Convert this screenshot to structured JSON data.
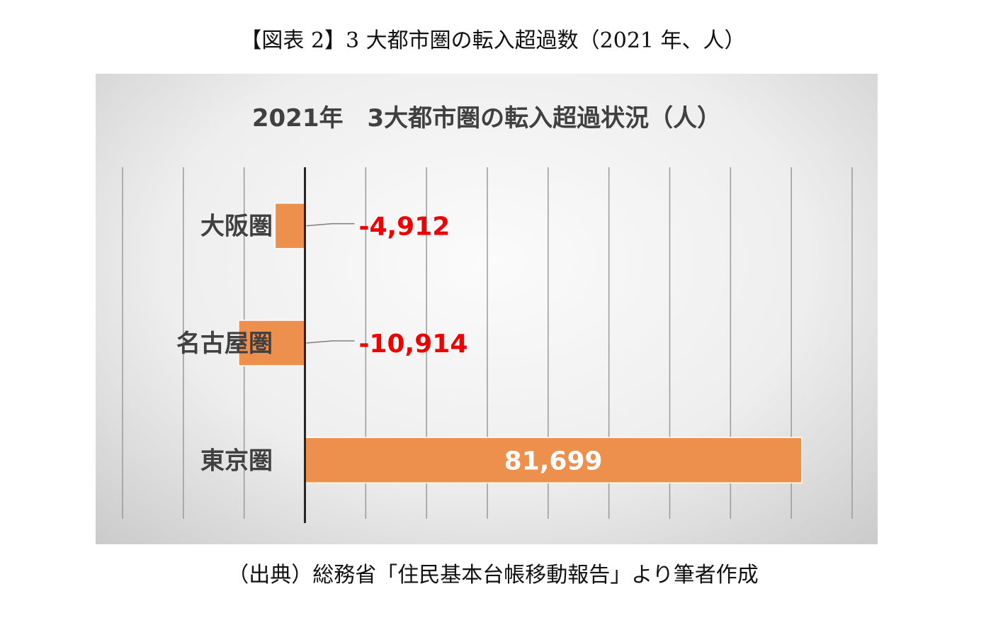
{
  "figure_title": "【図表 2】3 大都市圏の転入超過数（2021 年、人）",
  "source_note": "（出典）総務省「住民基本台帳移動報告」より筆者作成",
  "chart_data": {
    "type": "bar",
    "orientation": "horizontal",
    "title": "2021年　3大都市圏の転入超過状況（人）",
    "categories": [
      "大阪圏",
      "名古屋圏",
      "東京圏"
    ],
    "values": [
      -4912,
      -10914,
      81699
    ],
    "value_labels": [
      "-4,912",
      "-10,914",
      "81,699"
    ],
    "xlim": [
      -30000,
      90000
    ],
    "grid_step": 10000,
    "bar_color": "#ED8F4D",
    "negative_label_color": "#EE0000",
    "positive_label_color": "#FFFFFF",
    "grid": true,
    "legend": "none"
  }
}
